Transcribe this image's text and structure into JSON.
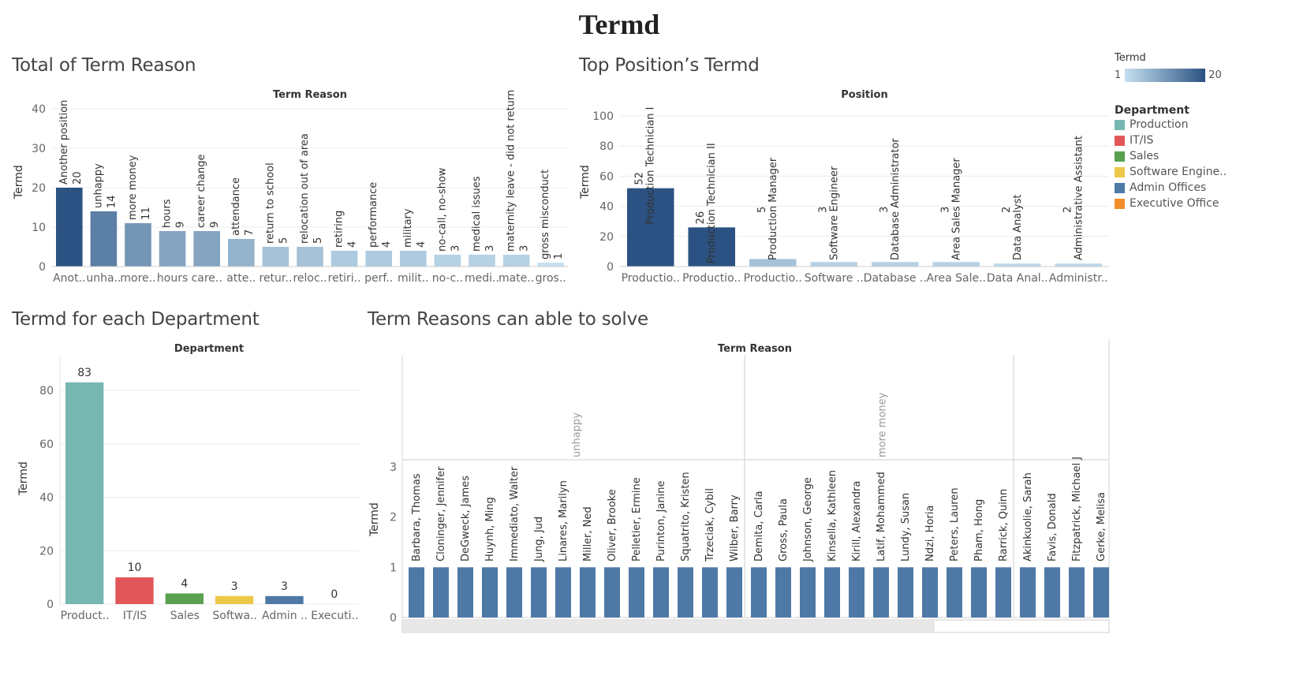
{
  "dashboard_title": "Termd",
  "legend": {
    "termd_title": "Termd",
    "termd_min": "1",
    "termd_max": "20",
    "department_title": "Department",
    "departments": [
      {
        "name": "Production",
        "color": "#76b7b2"
      },
      {
        "name": "IT/IS",
        "color": "#e15759"
      },
      {
        "name": "Sales",
        "color": "#59a14f"
      },
      {
        "name": "Software Engine..",
        "color": "#edc948"
      },
      {
        "name": "Admin Offices",
        "color": "#4e79a7"
      },
      {
        "name": "Executive Office",
        "color": "#f28e2b"
      }
    ]
  },
  "chart_data": [
    {
      "id": "term_reason",
      "type": "bar",
      "title": "Total of Term Reason",
      "header": "Term Reason",
      "ylabel": "Termd",
      "ylim": [
        0,
        40
      ],
      "yticks": [
        0,
        10,
        20,
        30,
        40
      ],
      "categories": [
        "Another position",
        "unhappy",
        "more money",
        "hours",
        "career change",
        "attendance",
        "return to school",
        "relocation out of area",
        "retiring",
        "performance",
        "military",
        "no-call, no-show",
        "medical issues",
        "maternity leave - did not return",
        "gross misconduct"
      ],
      "axis_labels": [
        "Anot..",
        "unha..",
        "more..",
        "hours",
        "care..",
        "atte..",
        "retur..",
        "reloc..",
        "retiri..",
        "perf..",
        "milit..",
        "no-c..",
        "medi..",
        "mate..",
        "gros.."
      ],
      "values": [
        20,
        14,
        11,
        9,
        9,
        7,
        5,
        5,
        4,
        4,
        4,
        3,
        3,
        3,
        1
      ]
    },
    {
      "id": "top_position",
      "type": "bar",
      "title": "Top Position’s Termd",
      "header": "Position",
      "ylabel": "Termd",
      "ylim": [
        0,
        110
      ],
      "yticks": [
        0,
        20,
        40,
        60,
        80,
        100
      ],
      "categories": [
        "Production Technician I",
        "Production Technician II",
        "Production Manager",
        "Software Engineer",
        "Database Administrator",
        "Area Sales Manager",
        "Data Analyst",
        "Administrative Assistant"
      ],
      "axis_labels": [
        "Productio..",
        "Productio..",
        "Productio..",
        "Software ..",
        "Database ..",
        "Area Sale..",
        "Data Anal..",
        "Administr.."
      ],
      "values": [
        52,
        26,
        5,
        3,
        3,
        3,
        2,
        2
      ]
    },
    {
      "id": "department",
      "type": "bar",
      "title": "Termd for each Department",
      "header": "Department",
      "ylabel": "Termd",
      "ylim": [
        0,
        90
      ],
      "yticks": [
        0,
        20,
        40,
        60,
        80
      ],
      "categories": [
        "Production",
        "IT/IS",
        "Sales",
        "Software Engineering",
        "Admin Offices",
        "Executive Office"
      ],
      "axis_labels": [
        "Product..",
        "IT/IS",
        "Sales",
        "Softwa..",
        "Admin ..",
        "Executi.."
      ],
      "values": [
        83,
        10,
        4,
        3,
        3,
        0
      ],
      "colors": [
        "#76b7b2",
        "#e15759",
        "#59a14f",
        "#edc948",
        "#4e79a7",
        "#f28e2b"
      ]
    },
    {
      "id": "solvable_reasons",
      "type": "bar",
      "title": "Term Reasons can able to solve",
      "header": "Term Reason",
      "ylabel": "Termd",
      "ylim": [
        0,
        3
      ],
      "yticks": [
        0,
        1,
        2,
        3
      ],
      "groups": [
        {
          "name": "unhappy",
          "employees": [
            "Barbara, Thomas",
            "Cloninger, Jennifer",
            "DeGweck,  James",
            "Huynh, Ming",
            "Immediato, Walter",
            "Jung, Jud",
            "Linares, Marilyn",
            "Miller, Ned",
            "Oliver, Brooke",
            "Pelletier, Ermine",
            "Purinton, Janine",
            "Squatrito, Kristen",
            "Trzeciak, Cybil",
            "Wilber, Barry"
          ],
          "values": [
            1,
            1,
            1,
            1,
            1,
            1,
            1,
            1,
            1,
            1,
            1,
            1,
            1,
            1
          ]
        },
        {
          "name": "more money",
          "employees": [
            "Demita, Carla",
            "Gross, Paula",
            "Johnson, George",
            "Kinsella, Kathleen",
            "Kirill, Alexandra",
            "Latif, Mohammed",
            "Lundy, Susan",
            "Ndzi, Horia",
            "Peters, Lauren",
            "Pham, Hong",
            "Rarrick, Quinn"
          ],
          "values": [
            1,
            1,
            1,
            1,
            1,
            1,
            1,
            1,
            1,
            1,
            1
          ]
        },
        {
          "name": "",
          "employees": [
            "Akinkuolie, Sarah",
            "Favis, Donald",
            "Fitzpatrick, Michael  J",
            "Gerke, Melisa"
          ],
          "values": [
            1,
            1,
            1,
            1
          ]
        }
      ]
    }
  ]
}
